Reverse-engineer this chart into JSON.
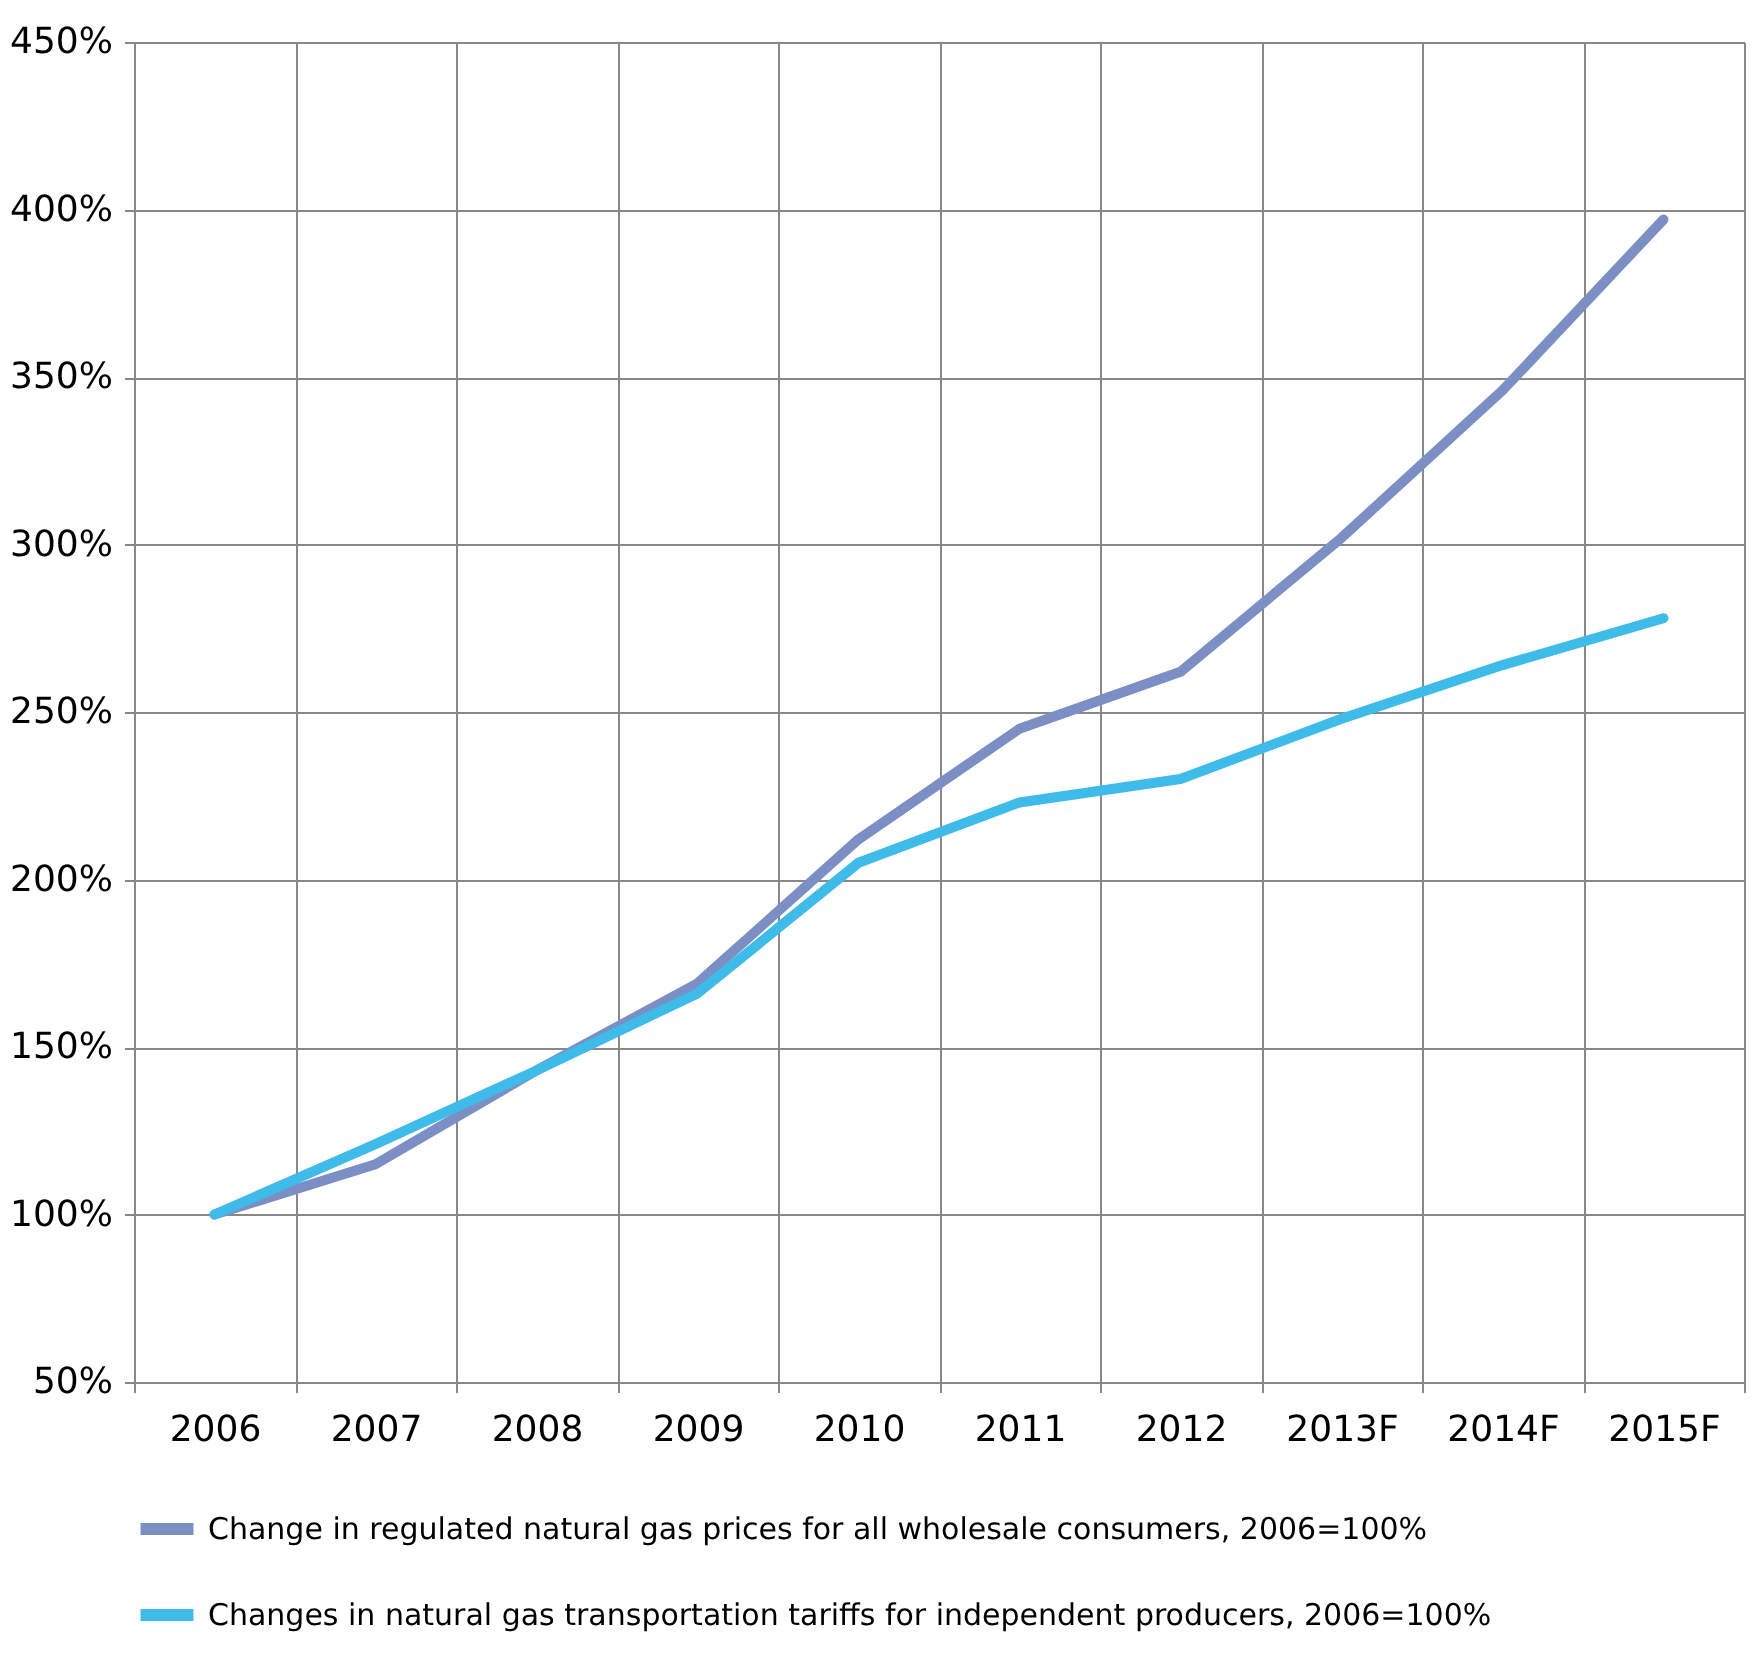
{
  "chart_data": {
    "type": "line",
    "categories": [
      "2006",
      "2007",
      "2008",
      "2009",
      "2010",
      "2011",
      "2012",
      "2013F",
      "2014F",
      "2015F"
    ],
    "series": [
      {
        "name": "Change in regulated natural gas prices for all wholesale consumers, 2006=100%",
        "color": "#7b8fc4",
        "values": [
          100,
          115,
          143,
          169,
          212,
          245,
          262,
          302,
          346,
          397
        ]
      },
      {
        "name": "Changes in natural gas transportation tariffs for independent producers, 2006=100%",
        "color": "#3fbbea",
        "values": [
          100,
          121,
          143,
          166,
          205,
          223,
          230,
          248,
          264,
          278
        ]
      }
    ],
    "ylim": [
      50,
      450
    ],
    "yticks": [
      {
        "value": 50,
        "label": "50%"
      },
      {
        "value": 100,
        "label": "100%"
      },
      {
        "value": 150,
        "label": "150%"
      },
      {
        "value": 200,
        "label": "200%"
      },
      {
        "value": 250,
        "label": "250%"
      },
      {
        "value": 300,
        "label": "300%"
      },
      {
        "value": 350,
        "label": "350%"
      },
      {
        "value": 400,
        "label": "400%"
      },
      {
        "value": 450,
        "label": "450%"
      }
    ],
    "grid": true,
    "legend": "bottom",
    "marker": "none",
    "line_style": "solid"
  }
}
